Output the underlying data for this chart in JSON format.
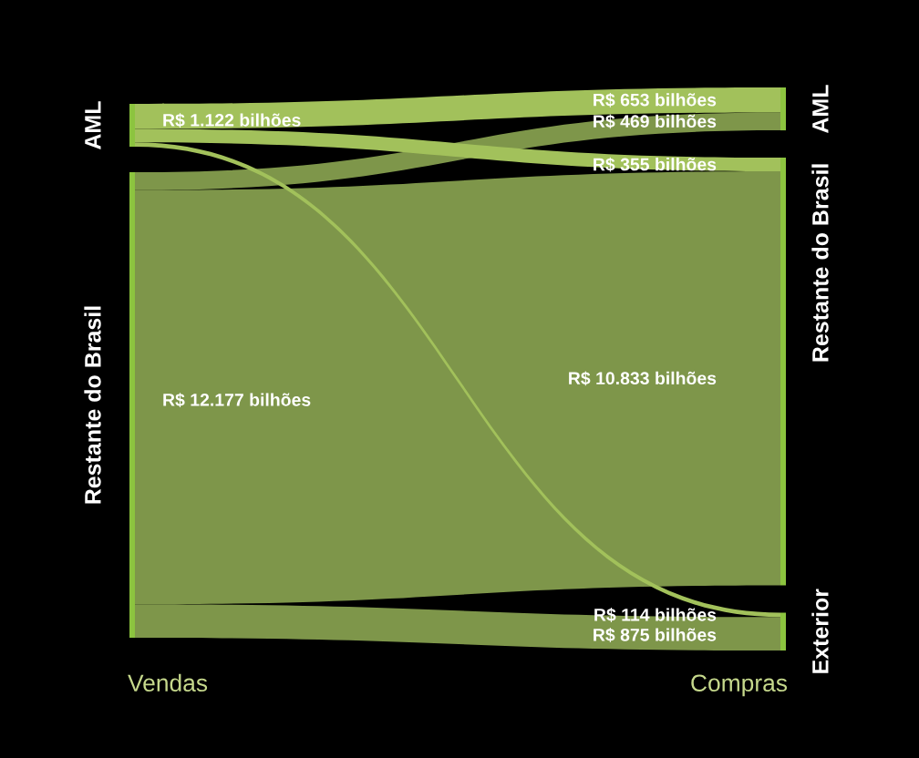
{
  "chart_data": {
    "type": "other",
    "categories": [
      "AML",
      "Restante do Brasil",
      "Exterior"
    ],
    "series": [
      {
        "name": "Restante do Brasil",
        "color": "#7e964a",
        "values": [
          469,
          10833,
          875
        ],
        "value_labels": [
          "R$ 469 bilhões",
          "R$ 10.833 bilhões",
          "R$ 875 bilhões"
        ]
      },
      {
        "name": "AML",
        "color": "#a2c15b",
        "values": [
          653,
          355,
          114
        ],
        "value_labels": [
          "R$ 653 bilhões",
          "R$ 355 bilhões",
          "R$ 114 bilhões"
        ]
      }
    ],
    "totals": [
      "R$ 12.177 bilhões",
      "R$ 1.122 bilhões"
    ],
    "annotations": [
      "Vendas",
      "Compras"
    ],
    "color": "#8cc43f"
  }
}
